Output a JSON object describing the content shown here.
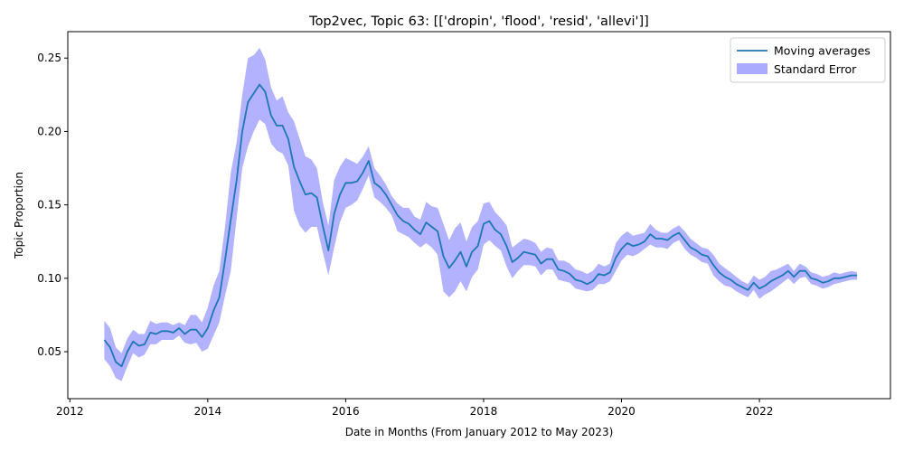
{
  "chart_data": {
    "type": "line",
    "title": "Top2vec, Topic 63: [['dropin', 'flood', 'resid', 'allevi']]",
    "xlabel": "Date in Months (From January 2012 to May 2023)",
    "ylabel": "Topic Proportion",
    "xlim": [
      2011.97,
      2023.9
    ],
    "ylim": [
      0.018,
      0.268
    ],
    "x_ticks": [
      2012,
      2014,
      2016,
      2018,
      2020,
      2022
    ],
    "x_tick_labels": [
      "2012",
      "2014",
      "2016",
      "2018",
      "2020",
      "2022"
    ],
    "y_ticks": [
      0.05,
      0.1,
      0.15,
      0.2,
      0.25
    ],
    "y_tick_labels": [
      "0.05",
      "0.10",
      "0.15",
      "0.20",
      "0.25"
    ],
    "grid": false,
    "legend_position": "top-right",
    "colors": {
      "line": "#1f77b4",
      "band": "#aaaaff"
    },
    "x_start": 2012.5,
    "x_step": 0.08333333,
    "series": [
      {
        "name": "Moving averages",
        "values": [
          0.058,
          0.053,
          0.043,
          0.04,
          0.05,
          0.057,
          0.054,
          0.055,
          0.063,
          0.062,
          0.064,
          0.064,
          0.063,
          0.066,
          0.062,
          0.065,
          0.065,
          0.06,
          0.066,
          0.078,
          0.087,
          0.112,
          0.14,
          0.166,
          0.2,
          0.22,
          0.226,
          0.232,
          0.227,
          0.211,
          0.204,
          0.204,
          0.195,
          0.176,
          0.166,
          0.157,
          0.158,
          0.155,
          0.136,
          0.119,
          0.144,
          0.157,
          0.165,
          0.165,
          0.166,
          0.172,
          0.18,
          0.165,
          0.162,
          0.157,
          0.15,
          0.143,
          0.139,
          0.137,
          0.133,
          0.13,
          0.138,
          0.135,
          0.132,
          0.115,
          0.107,
          0.112,
          0.118,
          0.108,
          0.118,
          0.122,
          0.137,
          0.139,
          0.133,
          0.13,
          0.122,
          0.111,
          0.114,
          0.118,
          0.117,
          0.116,
          0.11,
          0.113,
          0.113,
          0.106,
          0.105,
          0.103,
          0.099,
          0.098,
          0.096,
          0.098,
          0.103,
          0.102,
          0.104,
          0.114,
          0.12,
          0.124,
          0.122,
          0.123,
          0.125,
          0.13,
          0.127,
          0.127,
          0.126,
          0.129,
          0.131,
          0.126,
          0.121,
          0.119,
          0.116,
          0.115,
          0.109,
          0.104,
          0.101,
          0.099,
          0.096,
          0.094,
          0.092,
          0.097,
          0.093,
          0.095,
          0.098,
          0.1,
          0.102,
          0.105,
          0.101,
          0.105,
          0.105,
          0.1,
          0.099,
          0.097,
          0.098,
          0.1,
          0.1,
          0.101,
          0.102,
          0.102
        ]
      },
      {
        "name": "Standard Error",
        "upper": [
          0.071,
          0.066,
          0.053,
          0.049,
          0.059,
          0.065,
          0.062,
          0.062,
          0.071,
          0.069,
          0.07,
          0.07,
          0.068,
          0.07,
          0.068,
          0.075,
          0.075,
          0.07,
          0.08,
          0.095,
          0.105,
          0.135,
          0.172,
          0.192,
          0.225,
          0.25,
          0.252,
          0.257,
          0.249,
          0.23,
          0.221,
          0.224,
          0.213,
          0.207,
          0.195,
          0.183,
          0.181,
          0.175,
          0.152,
          0.136,
          0.167,
          0.176,
          0.182,
          0.18,
          0.178,
          0.183,
          0.19,
          0.175,
          0.17,
          0.164,
          0.156,
          0.151,
          0.148,
          0.148,
          0.142,
          0.14,
          0.152,
          0.149,
          0.148,
          0.137,
          0.126,
          0.134,
          0.138,
          0.125,
          0.135,
          0.139,
          0.151,
          0.152,
          0.145,
          0.141,
          0.136,
          0.121,
          0.124,
          0.127,
          0.126,
          0.124,
          0.118,
          0.121,
          0.12,
          0.112,
          0.112,
          0.11,
          0.106,
          0.105,
          0.103,
          0.105,
          0.11,
          0.108,
          0.11,
          0.124,
          0.129,
          0.132,
          0.129,
          0.13,
          0.131,
          0.137,
          0.133,
          0.131,
          0.131,
          0.134,
          0.136,
          0.132,
          0.127,
          0.124,
          0.121,
          0.12,
          0.116,
          0.11,
          0.107,
          0.104,
          0.101,
          0.098,
          0.096,
          0.102,
          0.099,
          0.101,
          0.105,
          0.106,
          0.108,
          0.11,
          0.105,
          0.11,
          0.108,
          0.104,
          0.103,
          0.101,
          0.102,
          0.104,
          0.103,
          0.104,
          0.105,
          0.104
        ],
        "lower": [
          0.045,
          0.04,
          0.032,
          0.03,
          0.04,
          0.049,
          0.046,
          0.048,
          0.055,
          0.055,
          0.058,
          0.058,
          0.058,
          0.061,
          0.056,
          0.055,
          0.056,
          0.05,
          0.052,
          0.061,
          0.07,
          0.088,
          0.105,
          0.14,
          0.175,
          0.19,
          0.2,
          0.208,
          0.205,
          0.192,
          0.187,
          0.185,
          0.177,
          0.146,
          0.136,
          0.131,
          0.135,
          0.135,
          0.118,
          0.102,
          0.121,
          0.138,
          0.148,
          0.15,
          0.153,
          0.161,
          0.17,
          0.155,
          0.152,
          0.148,
          0.143,
          0.132,
          0.13,
          0.128,
          0.124,
          0.121,
          0.124,
          0.121,
          0.116,
          0.091,
          0.087,
          0.091,
          0.098,
          0.091,
          0.101,
          0.106,
          0.123,
          0.126,
          0.122,
          0.119,
          0.108,
          0.1,
          0.105,
          0.109,
          0.109,
          0.108,
          0.102,
          0.106,
          0.106,
          0.099,
          0.098,
          0.097,
          0.093,
          0.092,
          0.091,
          0.092,
          0.096,
          0.096,
          0.098,
          0.105,
          0.112,
          0.116,
          0.115,
          0.117,
          0.12,
          0.123,
          0.121,
          0.121,
          0.12,
          0.124,
          0.126,
          0.12,
          0.116,
          0.114,
          0.111,
          0.11,
          0.102,
          0.098,
          0.095,
          0.094,
          0.091,
          0.089,
          0.087,
          0.092,
          0.086,
          0.089,
          0.091,
          0.094,
          0.097,
          0.1,
          0.096,
          0.1,
          0.101,
          0.096,
          0.095,
          0.093,
          0.094,
          0.096,
          0.097,
          0.098,
          0.099,
          0.099
        ]
      }
    ]
  }
}
